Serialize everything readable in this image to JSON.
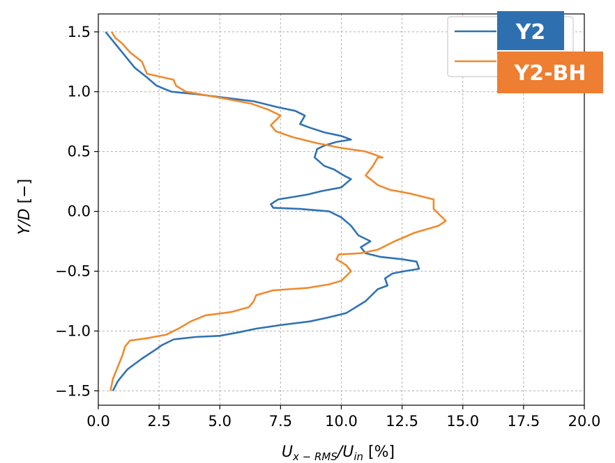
{
  "chart_data": {
    "type": "line",
    "title": "",
    "xlabel": {
      "main": "U",
      "sub1": "x − RMS",
      "slash": "/U",
      "sub2": "in",
      "unit": " [%]"
    },
    "ylabel": {
      "main": "Y/D",
      "unit": " [−]"
    },
    "xlim": [
      0,
      20
    ],
    "ylim": [
      -1.62,
      1.65
    ],
    "xticks": [
      0,
      2.5,
      5,
      7.5,
      10,
      12.5,
      15,
      17.5,
      20
    ],
    "xtick_labels": [
      "0.0",
      "2.5",
      "5.0",
      "7.5",
      "10.0",
      "12.5",
      "15.0",
      "17.5",
      "20.0"
    ],
    "yticks": [
      -1.5,
      -1.0,
      -0.5,
      0.0,
      0.5,
      1.0,
      1.5
    ],
    "ytick_labels": [
      "−1.5",
      "−1.0",
      "−0.5",
      "0.0",
      "0.5",
      "1.0",
      "1.5"
    ],
    "grid": true,
    "legend": "top-right",
    "series": [
      {
        "name": "Y2",
        "color": "#2f72b3",
        "points": [
          [
            0.6,
            -1.5
          ],
          [
            0.8,
            -1.42
          ],
          [
            1.2,
            -1.32
          ],
          [
            1.8,
            -1.23
          ],
          [
            2.4,
            -1.15
          ],
          [
            2.6,
            -1.12
          ],
          [
            3.1,
            -1.07
          ],
          [
            4.0,
            -1.05
          ],
          [
            5.0,
            -1.04
          ],
          [
            5.8,
            -1.01
          ],
          [
            6.5,
            -0.98
          ],
          [
            7.5,
            -0.95
          ],
          [
            8.7,
            -0.92
          ],
          [
            9.4,
            -0.89
          ],
          [
            10.2,
            -0.85
          ],
          [
            10.6,
            -0.8
          ],
          [
            11.0,
            -0.75
          ],
          [
            11.5,
            -0.65
          ],
          [
            11.9,
            -0.62
          ],
          [
            11.8,
            -0.56
          ],
          [
            12.1,
            -0.52
          ],
          [
            12.6,
            -0.5
          ],
          [
            13.2,
            -0.48
          ],
          [
            13.1,
            -0.42
          ],
          [
            12.5,
            -0.4
          ],
          [
            11.6,
            -0.38
          ],
          [
            11.0,
            -0.35
          ],
          [
            10.8,
            -0.3
          ],
          [
            11.2,
            -0.25
          ],
          [
            10.7,
            -0.2
          ],
          [
            10.4,
            -0.12
          ],
          [
            10.0,
            -0.05
          ],
          [
            9.5,
            0.0
          ],
          [
            8.3,
            0.02
          ],
          [
            7.2,
            0.03
          ],
          [
            7.1,
            0.06
          ],
          [
            7.4,
            0.1
          ],
          [
            8.0,
            0.12
          ],
          [
            8.6,
            0.14
          ],
          [
            9.2,
            0.17
          ],
          [
            10.0,
            0.2
          ],
          [
            10.4,
            0.27
          ],
          [
            10.1,
            0.3
          ],
          [
            9.7,
            0.35
          ],
          [
            9.3,
            0.38
          ],
          [
            8.9,
            0.45
          ],
          [
            9.0,
            0.52
          ],
          [
            9.3,
            0.55
          ],
          [
            9.8,
            0.58
          ],
          [
            10.4,
            0.6
          ],
          [
            10.0,
            0.63
          ],
          [
            9.3,
            0.66
          ],
          [
            8.7,
            0.7
          ],
          [
            8.3,
            0.73
          ],
          [
            8.5,
            0.8
          ],
          [
            8.1,
            0.84
          ],
          [
            7.4,
            0.87
          ],
          [
            6.4,
            0.92
          ],
          [
            5.2,
            0.95
          ],
          [
            4.0,
            0.98
          ],
          [
            3.0,
            1.0
          ],
          [
            2.4,
            1.05
          ],
          [
            2.0,
            1.12
          ],
          [
            1.5,
            1.2
          ],
          [
            1.1,
            1.3
          ],
          [
            0.7,
            1.4
          ],
          [
            0.5,
            1.45
          ],
          [
            0.3,
            1.5
          ]
        ]
      },
      {
        "name": "Y2-BH",
        "color": "#ef8a2e",
        "points": [
          [
            0.5,
            -1.5
          ],
          [
            0.6,
            -1.4
          ],
          [
            0.8,
            -1.3
          ],
          [
            1.0,
            -1.2
          ],
          [
            1.1,
            -1.13
          ],
          [
            1.3,
            -1.08
          ],
          [
            2.0,
            -1.06
          ],
          [
            2.8,
            -1.03
          ],
          [
            3.3,
            -0.98
          ],
          [
            3.8,
            -0.92
          ],
          [
            4.4,
            -0.87
          ],
          [
            5.5,
            -0.84
          ],
          [
            6.2,
            -0.8
          ],
          [
            6.4,
            -0.75
          ],
          [
            6.5,
            -0.7
          ],
          [
            7.2,
            -0.66
          ],
          [
            8.6,
            -0.64
          ],
          [
            9.5,
            -0.61
          ],
          [
            10.0,
            -0.58
          ],
          [
            10.2,
            -0.54
          ],
          [
            10.4,
            -0.5
          ],
          [
            10.2,
            -0.45
          ],
          [
            9.8,
            -0.4
          ],
          [
            9.9,
            -0.36
          ],
          [
            10.8,
            -0.35
          ],
          [
            11.5,
            -0.32
          ],
          [
            12.2,
            -0.25
          ],
          [
            13.0,
            -0.18
          ],
          [
            14.0,
            -0.12
          ],
          [
            14.3,
            -0.08
          ],
          [
            14.1,
            -0.04
          ],
          [
            13.8,
            0.02
          ],
          [
            13.8,
            0.1
          ],
          [
            12.8,
            0.15
          ],
          [
            12.0,
            0.18
          ],
          [
            11.5,
            0.22
          ],
          [
            11.0,
            0.3
          ],
          [
            11.3,
            0.38
          ],
          [
            11.5,
            0.45
          ],
          [
            11.7,
            0.45
          ],
          [
            11.0,
            0.5
          ],
          [
            10.0,
            0.53
          ],
          [
            9.0,
            0.57
          ],
          [
            8.0,
            0.62
          ],
          [
            7.3,
            0.67
          ],
          [
            7.1,
            0.72
          ],
          [
            7.5,
            0.8
          ],
          [
            7.0,
            0.85
          ],
          [
            6.3,
            0.9
          ],
          [
            5.0,
            0.95
          ],
          [
            3.6,
            1.0
          ],
          [
            3.2,
            1.05
          ],
          [
            3.1,
            1.1
          ],
          [
            2.0,
            1.15
          ],
          [
            1.8,
            1.25
          ],
          [
            1.3,
            1.33
          ],
          [
            1.0,
            1.4
          ],
          [
            0.7,
            1.45
          ],
          [
            0.55,
            1.5
          ]
        ]
      }
    ]
  }
}
